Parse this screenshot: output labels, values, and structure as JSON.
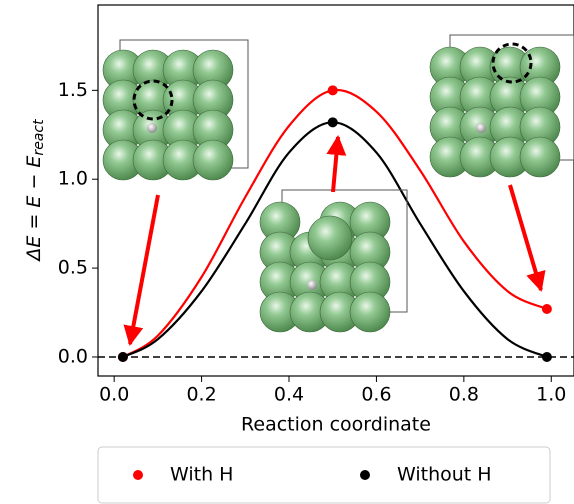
{
  "chart_data": {
    "type": "scatter",
    "xlabel": "Reaction coordinate",
    "ylabel": [
      "ΔE = E − E",
      "react"
    ],
    "xlim": [
      -0.037,
      1.052
    ],
    "ylim": [
      -0.107,
      1.98
    ],
    "xticks": [
      {
        "value": 0,
        "label": "0.0"
      },
      0.2,
      0.4,
      0.6,
      0.8,
      {
        "value": 1,
        "label": "1.0"
      }
    ],
    "yticks": [
      {
        "value": 0,
        "label": "0.0"
      },
      0.5,
      {
        "value": 1,
        "label": "1.0"
      },
      1.5
    ],
    "hline": 0,
    "series": [
      {
        "name": "With H",
        "color": "#ff0000",
        "x": [
          0.02,
          0.5,
          0.99
        ],
        "values": [
          0,
          1.5,
          0.27
        ]
      },
      {
        "name": "Without H",
        "color": "#000000",
        "x": [
          0.02,
          0.5,
          0.99
        ],
        "values": [
          0,
          1.32,
          0
        ]
      }
    ],
    "curves": [
      {
        "color": "#ff0000",
        "x": [
          0.02,
          0.1,
          0.2,
          0.3,
          0.4,
          0.5,
          0.6,
          0.7,
          0.8,
          0.9,
          0.99
        ],
        "values": [
          0,
          0.12,
          0.45,
          0.9,
          1.3,
          1.5,
          1.38,
          1.05,
          0.65,
          0.37,
          0.27
        ]
      },
      {
        "color": "#000000",
        "x": [
          0.02,
          0.1,
          0.2,
          0.3,
          0.4,
          0.5,
          0.6,
          0.7,
          0.8,
          0.9,
          0.99
        ],
        "values": [
          0,
          0.1,
          0.37,
          0.75,
          1.15,
          1.32,
          1.15,
          0.75,
          0.37,
          0.1,
          0
        ]
      }
    ]
  }
}
